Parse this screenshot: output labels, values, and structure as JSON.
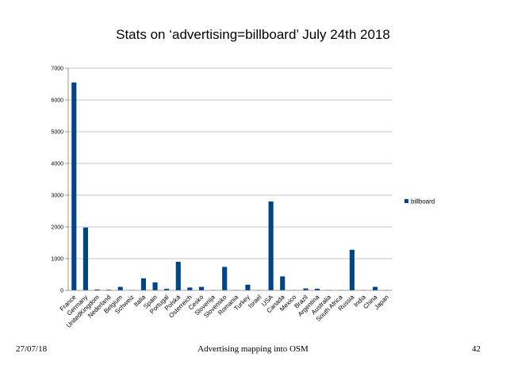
{
  "slide": {
    "title": "Stats on ‘advertising=billboard’ July 24th 2018",
    "footer_date": "27/07/18",
    "footer_title": "Advertising mapping into OSM",
    "footer_page": "42"
  },
  "colors": {
    "bar": "#004586",
    "grid": "#b3b3b3",
    "axis": "#808080"
  },
  "chart_data": {
    "type": "bar",
    "title": "",
    "xlabel": "",
    "ylabel": "",
    "ylim": [
      0,
      7000
    ],
    "yticks": [
      0,
      1000,
      2000,
      3000,
      4000,
      5000,
      6000,
      7000
    ],
    "grid": true,
    "legend_position": "right",
    "categories": [
      "France",
      "Germany",
      "UnitedKingdom",
      "Nederland",
      "Belgium",
      "Schweiz",
      "Italia",
      "Spain",
      "Portugal",
      "Polska",
      "Osterreich",
      "Cesko",
      "Slovenija",
      "Slovensko",
      "Romania",
      "Turkey",
      "Israel",
      "USA",
      "Canada",
      "Mexico",
      "Brazil",
      "Argentina",
      "Australia",
      "South Africa",
      "Russia",
      "India",
      "China",
      "Japan"
    ],
    "series": [
      {
        "name": "billboard",
        "values": [
          6550,
          1980,
          30,
          20,
          110,
          10,
          380,
          250,
          50,
          900,
          90,
          110,
          10,
          740,
          10,
          180,
          5,
          2800,
          440,
          10,
          60,
          50,
          10,
          10,
          1280,
          10,
          110,
          10
        ]
      }
    ]
  }
}
